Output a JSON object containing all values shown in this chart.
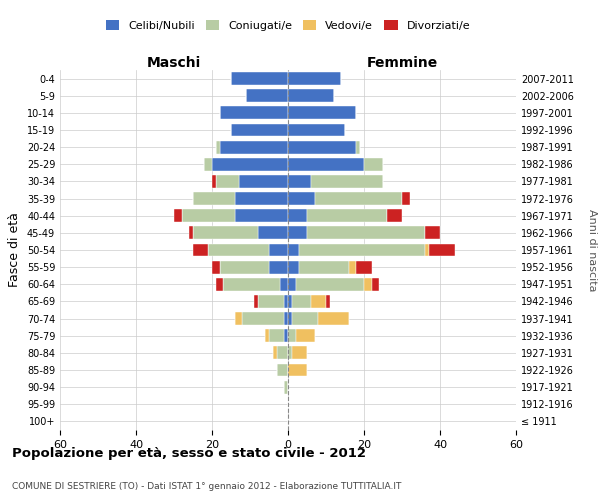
{
  "age_groups": [
    "100+",
    "95-99",
    "90-94",
    "85-89",
    "80-84",
    "75-79",
    "70-74",
    "65-69",
    "60-64",
    "55-59",
    "50-54",
    "45-49",
    "40-44",
    "35-39",
    "30-34",
    "25-29",
    "20-24",
    "15-19",
    "10-14",
    "5-9",
    "0-4"
  ],
  "birth_years": [
    "≤ 1911",
    "1912-1916",
    "1917-1921",
    "1922-1926",
    "1927-1931",
    "1932-1936",
    "1937-1941",
    "1942-1946",
    "1947-1951",
    "1952-1956",
    "1957-1961",
    "1962-1966",
    "1967-1971",
    "1972-1976",
    "1977-1981",
    "1982-1986",
    "1987-1991",
    "1992-1996",
    "1997-2001",
    "2002-2006",
    "2007-2011"
  ],
  "maschi": {
    "celibi": [
      0,
      0,
      0,
      0,
      0,
      1,
      1,
      1,
      2,
      5,
      5,
      8,
      14,
      14,
      13,
      20,
      18,
      15,
      18,
      11,
      15
    ],
    "coniugati": [
      0,
      0,
      1,
      3,
      3,
      4,
      11,
      7,
      15,
      13,
      16,
      17,
      14,
      11,
      6,
      2,
      1,
      0,
      0,
      0,
      0
    ],
    "vedovi": [
      0,
      0,
      0,
      0,
      1,
      1,
      2,
      0,
      0,
      0,
      0,
      0,
      0,
      0,
      0,
      0,
      0,
      0,
      0,
      0,
      0
    ],
    "divorziati": [
      0,
      0,
      0,
      0,
      0,
      0,
      0,
      1,
      2,
      2,
      4,
      1,
      2,
      0,
      1,
      0,
      0,
      0,
      0,
      0,
      0
    ]
  },
  "femmine": {
    "nubili": [
      0,
      0,
      0,
      0,
      0,
      0,
      1,
      1,
      2,
      3,
      3,
      5,
      5,
      7,
      6,
      20,
      18,
      15,
      18,
      12,
      14
    ],
    "coniugate": [
      0,
      0,
      0,
      0,
      1,
      2,
      7,
      5,
      18,
      13,
      33,
      31,
      21,
      23,
      19,
      5,
      1,
      0,
      0,
      0,
      0
    ],
    "vedove": [
      0,
      0,
      0,
      5,
      4,
      5,
      8,
      4,
      2,
      2,
      1,
      0,
      0,
      0,
      0,
      0,
      0,
      0,
      0,
      0,
      0
    ],
    "divorziate": [
      0,
      0,
      0,
      0,
      0,
      0,
      0,
      1,
      2,
      4,
      7,
      4,
      4,
      2,
      0,
      0,
      0,
      0,
      0,
      0,
      0
    ]
  },
  "colors": {
    "celibi": "#4472c4",
    "coniugati": "#b8cca4",
    "vedovi": "#f0c060",
    "divorziati": "#cc2222"
  },
  "xlim": 60,
  "title": "Popolazione per età, sesso e stato civile - 2012",
  "subtitle": "COMUNE DI SESTRIERE (TO) - Dati ISTAT 1° gennaio 2012 - Elaborazione TUTTITALIA.IT",
  "ylabel_left": "Fasce di età",
  "ylabel_right": "Anni di nascita",
  "header_maschi": "Maschi",
  "header_femmine": "Femmine"
}
